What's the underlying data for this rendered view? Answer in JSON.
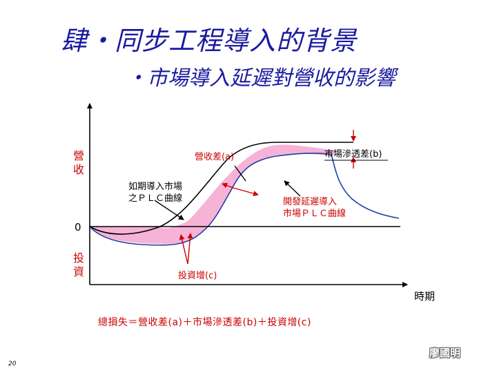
{
  "title": "肆・同步工程導入的背景",
  "subtitle": "・市場導入延遲對營收的影響",
  "axes": {
    "y_top_label": "營\n收",
    "y_bottom_label": "投\n資",
    "zero_label": "0",
    "x_label": "時期"
  },
  "labels": {
    "revenue_diff": "營收差(a)",
    "market_penetration_diff": "市場滲透差(b)",
    "early_plc": "如期導入市場\n之ＰＬＣ曲線",
    "delayed_plc": "開發延遲導入\n市場ＰＬＣ曲線",
    "investment_increase": "投資增(c)"
  },
  "formula": "總損失＝營收差(a)＋市場滲透差(b)＋投資增(c)",
  "author": "廖國明",
  "page_number": "20",
  "colors": {
    "title": "#1a1aa0",
    "label_red": "#cc0000",
    "revenue_fill": "#f6b3d6",
    "investment_fill": "#f0a06a",
    "delayed_curve": "#1a3fa8",
    "early_curve": "#000000"
  }
}
